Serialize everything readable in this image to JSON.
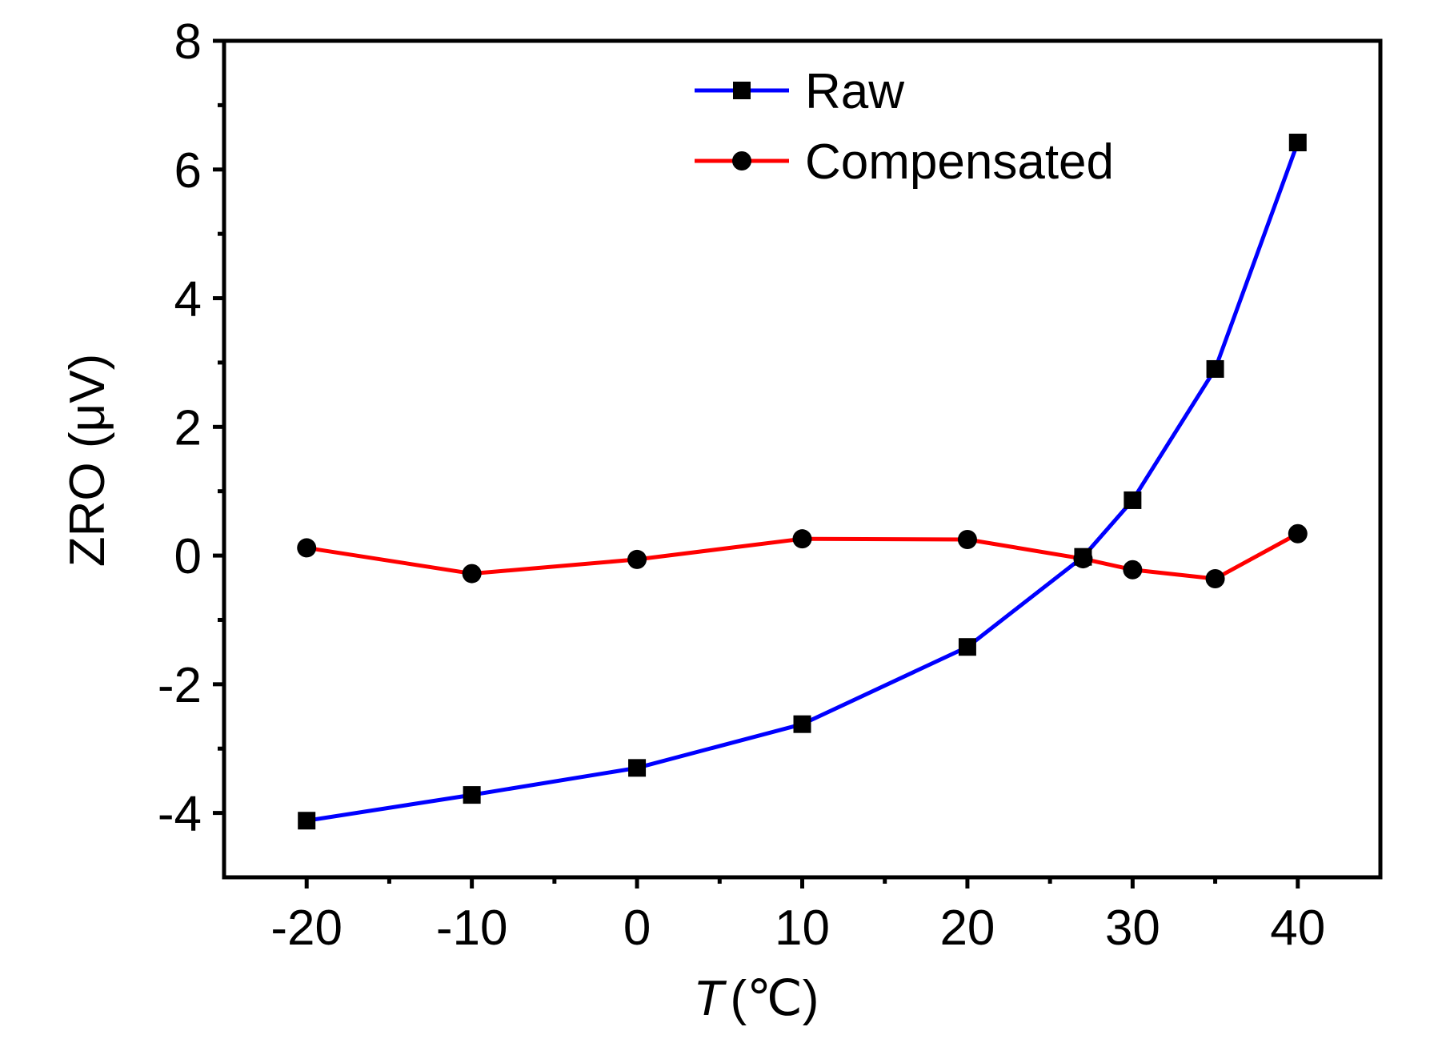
{
  "chart_data": {
    "type": "line",
    "title": "",
    "xlabel_var": "T",
    "xlabel_unit": "(℃)",
    "ylabel": "ZRO (μV)",
    "xlim": [
      -25,
      45
    ],
    "ylim": [
      -5,
      8
    ],
    "x_ticks": [
      -20,
      -10,
      0,
      10,
      20,
      30,
      40
    ],
    "y_ticks": [
      -4,
      -2,
      0,
      2,
      4,
      6,
      8
    ],
    "x_tick_labels": [
      "-20",
      "-10",
      "0",
      "10",
      "20",
      "30",
      "40"
    ],
    "y_tick_labels": [
      "-4",
      "-2",
      "0",
      "2",
      "4",
      "6",
      "8"
    ],
    "grid": false,
    "legend_position": "top-center",
    "series": [
      {
        "name": "Raw",
        "color": "#0000ff",
        "marker": "square",
        "x": [
          -20,
          -10,
          0,
          10,
          20,
          27,
          30,
          35,
          40
        ],
        "y": [
          -4.12,
          -3.72,
          -3.3,
          -2.62,
          -1.42,
          -0.02,
          0.86,
          2.9,
          6.42
        ]
      },
      {
        "name": "Compensated",
        "color": "#ff0000",
        "marker": "circle",
        "x": [
          -20,
          -10,
          0,
          10,
          20,
          27,
          30,
          35,
          40
        ],
        "y": [
          0.12,
          -0.28,
          -0.06,
          0.26,
          0.25,
          -0.05,
          -0.22,
          -0.36,
          0.34
        ]
      }
    ]
  }
}
